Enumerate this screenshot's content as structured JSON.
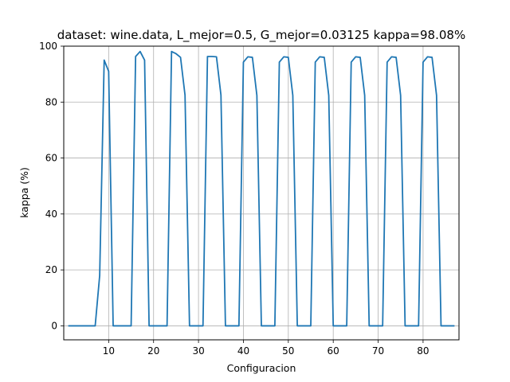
{
  "chart_data": {
    "type": "line",
    "title": "dataset: wine.data, L_mejor=0.5, G_mejor=0.03125 kappa=98.08%",
    "xlabel": "Configuracion",
    "ylabel": "kappa (%)",
    "xlim": [
      0,
      88
    ],
    "ylim": [
      -5,
      100
    ],
    "xticks": [
      10,
      20,
      30,
      40,
      50,
      60,
      70,
      80
    ],
    "yticks": [
      0,
      20,
      40,
      60,
      80,
      100
    ],
    "grid": true,
    "series": [
      {
        "color": "#1f77b4",
        "x": [
          1,
          2,
          3,
          4,
          5,
          6,
          7,
          8,
          9,
          10,
          11,
          12,
          13,
          14,
          15,
          16,
          17,
          18,
          19,
          20,
          21,
          22,
          23,
          24,
          25,
          26,
          27,
          28,
          29,
          30,
          31,
          32,
          33,
          34,
          35,
          36,
          37,
          38,
          39,
          40,
          41,
          42,
          43,
          44,
          45,
          46,
          47,
          48,
          49,
          50,
          51,
          52,
          53,
          54,
          55,
          56,
          57,
          58,
          59,
          60,
          61,
          62,
          63,
          64,
          65,
          66,
          67,
          68,
          69,
          70,
          71,
          72,
          73,
          74,
          75,
          76,
          77,
          78,
          79,
          80,
          81,
          82,
          83,
          84,
          85,
          86,
          87
        ],
        "y": [
          0,
          0,
          0,
          0,
          0,
          0,
          0,
          18,
          95,
          91,
          0,
          0,
          0,
          0,
          0,
          96.3,
          98.1,
          95,
          0,
          0,
          0,
          0,
          0,
          98.1,
          97.3,
          96,
          82.5,
          0,
          0,
          0,
          0,
          96.3,
          96.3,
          96.2,
          82.5,
          0,
          0,
          0,
          0,
          94.3,
          96.2,
          96,
          82.4,
          0,
          0,
          0,
          0,
          94.3,
          96.2,
          96,
          82.4,
          0,
          0,
          0,
          0,
          94.3,
          96.2,
          96,
          82.4,
          0,
          0,
          0,
          0,
          94.3,
          96.2,
          96,
          82.4,
          0,
          0,
          0,
          0,
          94.3,
          96.2,
          96,
          82.4,
          0,
          0,
          0,
          0,
          94.3,
          96.2,
          96,
          82.4,
          0,
          0,
          0,
          0
        ]
      }
    ]
  }
}
